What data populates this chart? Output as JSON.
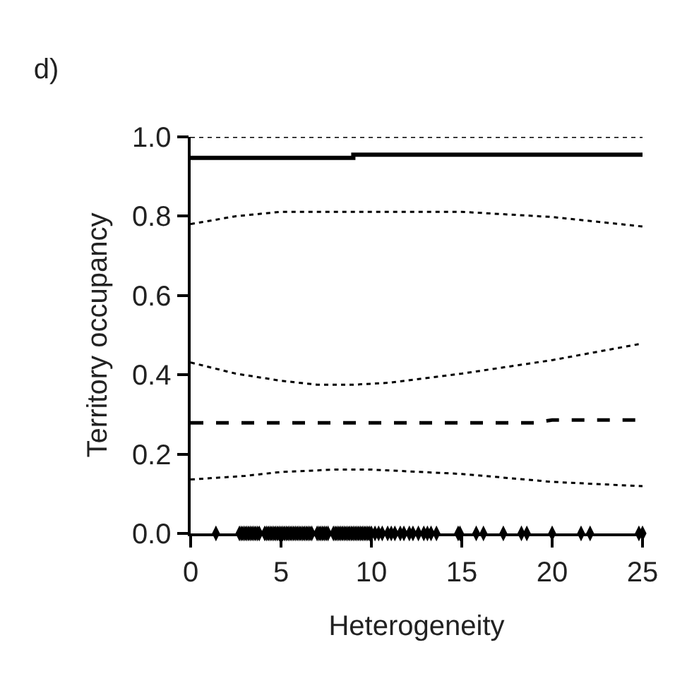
{
  "chart_data": {
    "type": "line",
    "title": "d)",
    "xlabel": "Heterogeneity",
    "ylabel": "Territory occupancy",
    "xlim": [
      0,
      25
    ],
    "ylim": [
      0,
      1
    ],
    "xticks": [
      0,
      5,
      10,
      15,
      20,
      25
    ],
    "yticks": [
      {
        "value": 0,
        "label": "0.0"
      },
      {
        "value": 0.2,
        "label": "0.2"
      },
      {
        "value": 0.4,
        "label": "0.4"
      },
      {
        "value": 0.6,
        "label": "0.6"
      },
      {
        "value": 0.8,
        "label": "0.8"
      },
      {
        "value": 1,
        "label": "1.0"
      }
    ],
    "series": [
      {
        "color": "#000000",
        "line_style": "dotted",
        "x": [
          0,
          25
        ],
        "values": [
          1.0,
          1.0
        ]
      },
      {
        "color": "#000000",
        "line_style": "solid",
        "x": [
          0,
          9,
          9,
          25
        ],
        "values": [
          0.947,
          0.947,
          0.955,
          0.955
        ]
      },
      {
        "color": "#000000",
        "line_style": "dotted",
        "x": [
          0,
          2.5,
          5,
          10,
          15,
          20,
          25
        ],
        "values": [
          0.78,
          0.8,
          0.811,
          0.811,
          0.811,
          0.798,
          0.774
        ]
      },
      {
        "color": "#000000",
        "line_style": "dotted",
        "x": [
          0,
          2.5,
          5,
          7,
          9,
          11,
          15,
          20,
          25
        ],
        "values": [
          0.431,
          0.403,
          0.385,
          0.375,
          0.375,
          0.38,
          0.403,
          0.437,
          0.479
        ]
      },
      {
        "color": "#000000",
        "line_style": "dashed",
        "x": [
          0,
          19,
          20,
          25
        ],
        "values": [
          0.279,
          0.279,
          0.286,
          0.286
        ]
      },
      {
        "color": "#000000",
        "line_style": "dotted",
        "x": [
          0,
          3,
          5,
          8,
          10,
          15,
          20,
          25
        ],
        "values": [
          0.136,
          0.145,
          0.155,
          0.161,
          0.161,
          0.15,
          0.13,
          0.119
        ]
      },
      {
        "type": "scatter",
        "color": "#000000",
        "x": [
          1.4,
          2.7,
          2.8,
          2.9,
          3.0,
          3.1,
          3.2,
          3.3,
          3.4,
          3.5,
          3.6,
          3.7,
          3.8,
          4.1,
          4.2,
          4.3,
          4.4,
          4.5,
          4.6,
          4.7,
          4.8,
          4.9,
          5.0,
          5.1,
          5.2,
          5.3,
          5.4,
          5.5,
          5.6,
          5.7,
          5.8,
          5.9,
          6.0,
          6.1,
          6.2,
          6.3,
          6.4,
          6.5,
          6.6,
          6.7,
          7.0,
          7.1,
          7.2,
          7.3,
          7.4,
          7.5,
          7.6,
          7.9,
          8.0,
          8.1,
          8.2,
          8.3,
          8.4,
          8.5,
          8.6,
          8.7,
          8.8,
          8.9,
          9.0,
          9.1,
          9.2,
          9.3,
          9.4,
          9.5,
          9.6,
          9.7,
          9.8,
          9.9,
          10.0,
          10.2,
          10.4,
          10.6,
          10.9,
          11.1,
          11.3,
          11.6,
          11.8,
          12.1,
          12.3,
          12.6,
          12.9,
          13.1,
          13.3,
          13.6,
          14.8,
          14.9,
          15.8,
          16.2,
          17.3,
          18.3,
          18.6,
          20.0,
          21.6,
          22.1,
          24.8,
          25.0
        ],
        "values": [
          0,
          0,
          0,
          0,
          0,
          0,
          0,
          0,
          0,
          0,
          0,
          0,
          0,
          0,
          0,
          0,
          0,
          0,
          0,
          0,
          0,
          0,
          0,
          0,
          0,
          0,
          0,
          0,
          0,
          0,
          0,
          0,
          0,
          0,
          0,
          0,
          0,
          0,
          0,
          0,
          0,
          0,
          0,
          0,
          0,
          0,
          0,
          0,
          0,
          0,
          0,
          0,
          0,
          0,
          0,
          0,
          0,
          0,
          0,
          0,
          0,
          0,
          0,
          0,
          0,
          0,
          0,
          0,
          0,
          0,
          0,
          0,
          0,
          0,
          0,
          0,
          0,
          0,
          0,
          0,
          0,
          0,
          0,
          0,
          0,
          0,
          0,
          0,
          0,
          0,
          0,
          0,
          0,
          0,
          0,
          0
        ]
      }
    ]
  }
}
